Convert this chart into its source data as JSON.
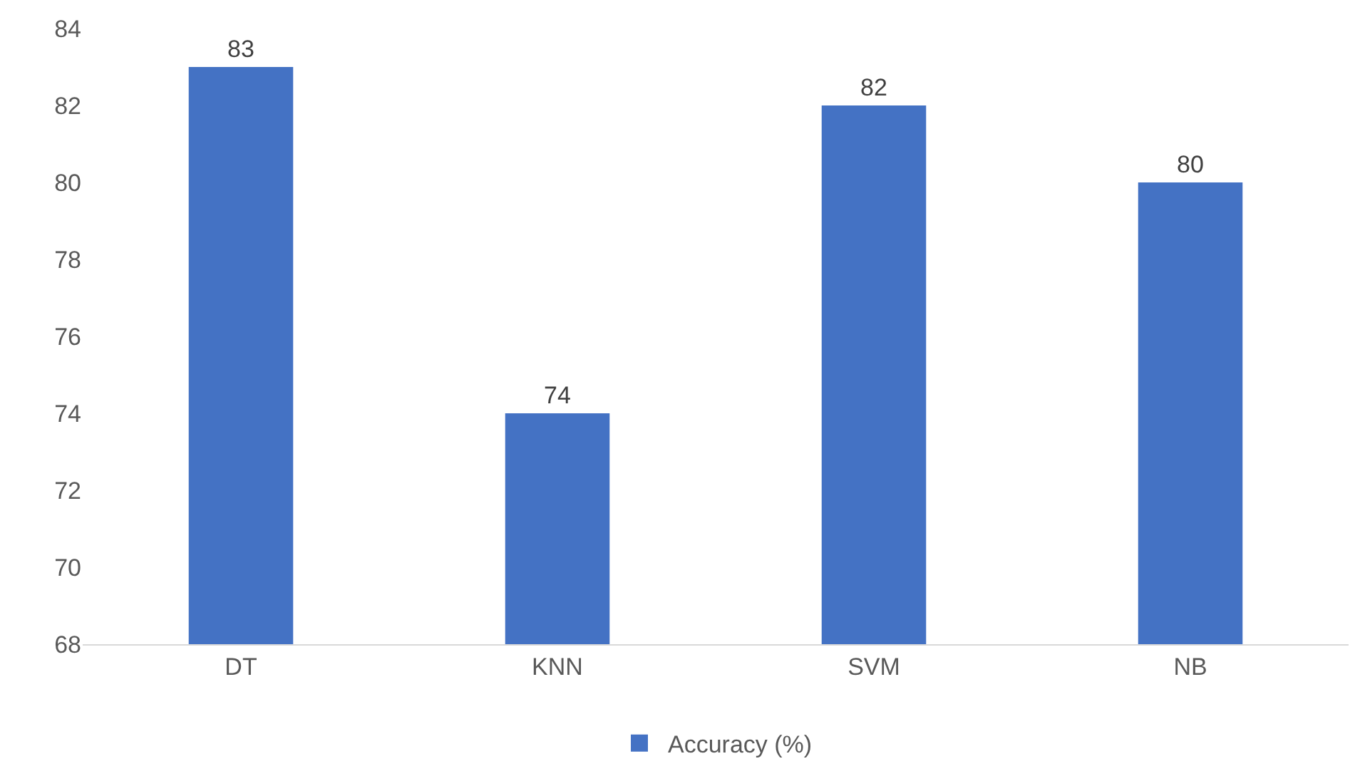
{
  "chart_data": {
    "type": "bar",
    "categories": [
      "DT",
      "KNN",
      "SVM",
      "NB"
    ],
    "series": [
      {
        "name": "Accuracy (%)",
        "color": "#4472c4",
        "values": [
          83,
          74,
          82,
          80
        ]
      }
    ],
    "ylim": [
      68,
      84
    ],
    "yticks": [
      68,
      70,
      72,
      74,
      76,
      78,
      80,
      82,
      84
    ],
    "grid": false,
    "legend": "bottom",
    "data_labels": true
  }
}
